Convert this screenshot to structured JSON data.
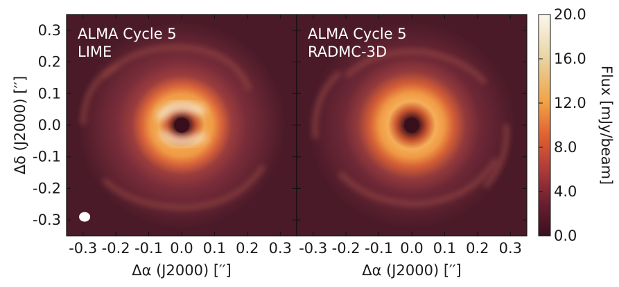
{
  "chart_data": {
    "type": "heatmap",
    "panels": [
      {
        "label_line1": "ALMA Cycle 5",
        "label_line2": "LIME"
      },
      {
        "label_line1": "ALMA Cycle 5",
        "label_line2": "RADMC-3D"
      }
    ],
    "xlabel": "Δα (J2000) [′′]",
    "ylabel": "Δδ (J2000) [′′]",
    "x_ticks": [
      "-0.3",
      "-0.2",
      "-0.1",
      "0.0",
      "0.1",
      "0.2",
      "0.3"
    ],
    "x_tick_values": [
      -0.3,
      -0.2,
      -0.1,
      0.0,
      0.1,
      0.2,
      0.3
    ],
    "y_ticks": [
      "0.3",
      "0.2",
      "0.1",
      "0.0",
      "-0.1",
      "-0.2",
      "-0.3"
    ],
    "y_tick_values": [
      0.3,
      0.2,
      0.1,
      0.0,
      -0.1,
      -0.2,
      -0.3
    ],
    "xlim": [
      -0.35,
      0.35
    ],
    "ylim": [
      -0.35,
      0.35
    ],
    "colorbar": {
      "label": "Flux [mJy/beam]",
      "ticks": [
        "20.0",
        "16.0",
        "12.0",
        "8.0",
        "4.0",
        "0.0"
      ],
      "tick_values": [
        20,
        16,
        12,
        8,
        4,
        0
      ],
      "range": [
        0,
        20
      ],
      "colors": [
        "#3a1020",
        "#6b1f30",
        "#b03a3a",
        "#e0602f",
        "#f1a045",
        "#e8d4a0",
        "#fbf7ee"
      ]
    },
    "beam": {
      "x": -0.295,
      "y": -0.29
    }
  }
}
